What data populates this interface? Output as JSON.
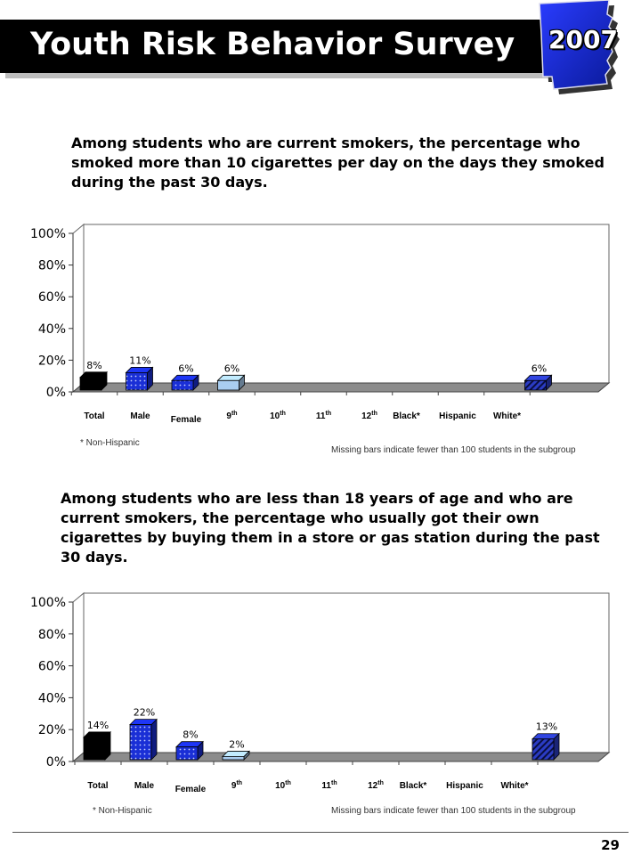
{
  "header": {
    "title": "Youth Risk Behavior Survey",
    "year": "2007",
    "state_shape": "arkansas-state-icon"
  },
  "colors": {
    "total": "#000000",
    "sex": "#1a2fd6",
    "grade": "#a9cdf0",
    "race": "#2b3cc4"
  },
  "chart_data": [
    {
      "type": "bar",
      "question": "Among students who are current smokers, the percentage who smoked more than 10 cigarettes per day on the days they smoked during the past 30 days.",
      "categories": [
        "Total",
        "Male",
        "Female",
        "9th",
        "10th",
        "11th",
        "12th",
        "Black*",
        "Hispanic",
        "White*"
      ],
      "values": [
        8,
        11,
        6,
        6,
        null,
        null,
        null,
        null,
        null,
        6
      ],
      "labels": [
        "8%",
        "11%",
        "6%",
        "6%",
        "",
        "",
        "",
        "",
        "",
        "6%"
      ],
      "yticks": [
        "0%",
        "20%",
        "40%",
        "60%",
        "80%",
        "100%"
      ],
      "ylim": [
        0,
        100
      ],
      "footnote": "* Non-Hispanic",
      "note": "Missing bars indicate fewer than 100 students in the subgroup"
    },
    {
      "type": "bar",
      "question": "Among students who are less than 18 years of age and who are current smokers, the percentage who usually got their own cigarettes by buying them in a store or gas station during the past 30 days.",
      "categories": [
        "Total",
        "Male",
        "Female",
        "9th",
        "10th",
        "11th",
        "12th",
        "Black*",
        "Hispanic",
        "White*"
      ],
      "values": [
        14,
        22,
        8,
        2,
        null,
        null,
        null,
        null,
        null,
        13
      ],
      "labels": [
        "14%",
        "22%",
        "8%",
        "2%",
        "",
        "",
        "",
        "",
        "",
        "13%"
      ],
      "yticks": [
        "0%",
        "20%",
        "40%",
        "60%",
        "80%",
        "100%"
      ],
      "ylim": [
        0,
        100
      ],
      "footnote": "* Non-Hispanic",
      "note": "Missing bars indicate fewer than 100 students in the subgroup"
    }
  ],
  "page_number": "29"
}
